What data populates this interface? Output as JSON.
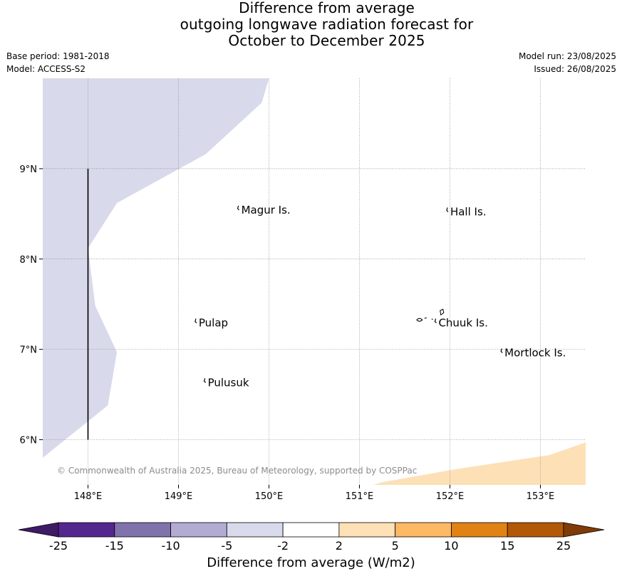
{
  "header": {
    "title_line1": "Difference from average",
    "title_line2": "outgoing longwave radiation forecast for",
    "title_line3": "October to December 2025",
    "base_period": "Base period: 1981-2018",
    "model": "Model: ACCESS-S2",
    "model_run": "Model run: 23/08/2025",
    "issued": "Issued: 26/08/2025"
  },
  "map": {
    "lon_range": [
      147.5,
      153.5
    ],
    "lat_range": [
      5.5,
      10.0
    ],
    "lon_ticks": [
      {
        "value": 148,
        "label": "148°E"
      },
      {
        "value": 149,
        "label": "149°E"
      },
      {
        "value": 150,
        "label": "150°E"
      },
      {
        "value": 151,
        "label": "151°E"
      },
      {
        "value": 152,
        "label": "152°E"
      },
      {
        "value": 153,
        "label": "153°E"
      }
    ],
    "lat_ticks": [
      {
        "value": 9,
        "label": "9°N"
      },
      {
        "value": 8,
        "label": "8°N"
      },
      {
        "value": 7,
        "label": "7°N"
      },
      {
        "value": 6,
        "label": "6°N"
      }
    ],
    "places": [
      {
        "name": "Magur Is.",
        "lon": 149.67,
        "lat": 8.55
      },
      {
        "name": "Hall Is.",
        "lon": 151.98,
        "lat": 8.53
      },
      {
        "name": "Pulap",
        "lon": 149.2,
        "lat": 7.3
      },
      {
        "name": "Chuuk Is.",
        "lon": 151.85,
        "lat": 7.3
      },
      {
        "name": "Mortlock Is.",
        "lon": 152.58,
        "lat": 6.97
      },
      {
        "name": "Pulusuk",
        "lon": 149.3,
        "lat": 6.64
      }
    ],
    "copyright": "© Commonwealth of Australia 2025, Bureau of Meteorology, supported by COSPPac",
    "shaded_regions": [
      {
        "category": "-5 to -2",
        "color": "#d8d9ea",
        "polygon": [
          [
            147.5,
            10.0
          ],
          [
            150.0,
            10.0
          ],
          [
            149.92,
            9.73
          ],
          [
            149.3,
            9.16
          ],
          [
            148.32,
            8.62
          ],
          [
            148.0,
            8.12
          ],
          [
            148.08,
            7.48
          ],
          [
            148.32,
            6.97
          ],
          [
            148.22,
            6.38
          ],
          [
            147.5,
            5.8
          ]
        ]
      },
      {
        "category": "2 to 5",
        "color": "#fde0b6",
        "polygon": [
          [
            151.15,
            5.5
          ],
          [
            151.25,
            5.53
          ],
          [
            152.1,
            5.68
          ],
          [
            153.1,
            5.83
          ],
          [
            153.5,
            5.97
          ],
          [
            153.5,
            5.5
          ]
        ]
      }
    ],
    "boundary_line": {
      "lon": 148.0,
      "lat_from": 9.0,
      "lat_to": 6.0
    }
  },
  "colorbar": {
    "title": "Difference from average (W/m2)",
    "labels": [
      "-25",
      "-15",
      "-10",
      "-5",
      "-2",
      "2",
      "5",
      "10",
      "15",
      "25"
    ],
    "colors": [
      "#3f1b66",
      "#54278f",
      "#8073ac",
      "#b2abd2",
      "#d8daeb",
      "#ffffff",
      "#fee0b6",
      "#fdb863",
      "#e08214",
      "#b35806",
      "#7f3b08"
    ]
  }
}
